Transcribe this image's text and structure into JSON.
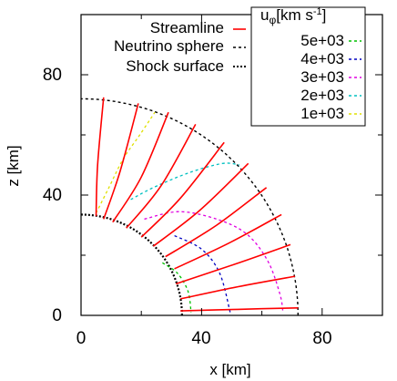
{
  "chart_data": {
    "type": "line",
    "xlabel": "x [km]",
    "ylabel": "z [km]",
    "xlim": [
      0,
      100
    ],
    "ylim": [
      0,
      100
    ],
    "xticks": [
      "0",
      "40",
      "80"
    ],
    "yticks": [
      "0",
      "40",
      "80"
    ],
    "grid": false,
    "legend_position": "inside top",
    "neutrino_sphere_radius_km": 72,
    "shock_surface_radius_km": 33.5,
    "streamlines": [
      [
        [
          72,
          2.5
        ],
        [
          52,
          2
        ],
        [
          33,
          1.5
        ]
      ],
      [
        [
          71,
          13
        ],
        [
          52,
          9.5
        ],
        [
          33,
          5.5
        ]
      ],
      [
        [
          69.5,
          23.5
        ],
        [
          51,
          17
        ],
        [
          31.5,
          10.5
        ]
      ],
      [
        [
          66.5,
          33.5
        ],
        [
          49,
          24
        ],
        [
          31,
          15.5
        ]
      ],
      [
        [
          61.5,
          42.5
        ],
        [
          45,
          30
        ],
        [
          28,
          19.5
        ]
      ],
      [
        [
          55.5,
          50.5
        ],
        [
          39.5,
          35
        ],
        [
          24,
          23
        ]
      ],
      [
        [
          47.5,
          57.5
        ],
        [
          33,
          39
        ],
        [
          20,
          26
        ]
      ],
      [
        [
          38,
          63.5
        ],
        [
          26.5,
          43
        ],
        [
          15,
          29
        ]
      ],
      [
        [
          29,
          67.5
        ],
        [
          20,
          46
        ],
        [
          10.5,
          31
        ]
      ],
      [
        [
          19,
          70.5
        ],
        [
          13,
          48
        ],
        [
          7.5,
          32
        ]
      ],
      [
        [
          7.5,
          72.5
        ],
        [
          5.5,
          50
        ],
        [
          5,
          33
        ]
      ]
    ],
    "uphi_contours": [
      {
        "label": "5e+03",
        "color": "#00c000",
        "points": [
          [
            27,
            17.5
          ],
          [
            32,
            14
          ],
          [
            35.5,
            8
          ],
          [
            36.5,
            1
          ]
        ]
      },
      {
        "label": "4e+03",
        "color": "#0000c0",
        "points": [
          [
            31,
            26.5
          ],
          [
            40,
            22
          ],
          [
            46,
            14
          ],
          [
            49.5,
            1
          ]
        ]
      },
      {
        "label": "3e+03",
        "color": "#e000e0",
        "points": [
          [
            21,
            32
          ],
          [
            32.5,
            34.5
          ],
          [
            45,
            32
          ],
          [
            55,
            27
          ],
          [
            62,
            18
          ],
          [
            66,
            7
          ],
          [
            67,
            1
          ]
        ]
      },
      {
        "label": "2e+03",
        "color": "#00c0c0",
        "points": [
          [
            16.5,
            38.5
          ],
          [
            24,
            42.5
          ],
          [
            36,
            47.5
          ],
          [
            47,
            50.5
          ],
          [
            52.5,
            50
          ]
        ]
      },
      {
        "label": "1e+03",
        "color": "#e0e000",
        "points": [
          [
            5,
            34
          ],
          [
            9,
            42
          ],
          [
            14,
            52
          ],
          [
            19.5,
            60
          ],
          [
            24.5,
            67.5
          ]
        ]
      }
    ]
  },
  "legend": {
    "streamline": {
      "label": "Streamline",
      "color": "#ff0000"
    },
    "neutrino": {
      "label": "Neutrino sphere"
    },
    "shock": {
      "label": "Shock surface"
    },
    "uphi_base": "u",
    "uphi_sub": "φ",
    "uphi_unit": "[km s",
    "uphi_exp": "-1",
    "uphi_close": "]",
    "contour_labels": [
      "5e+03",
      "4e+03",
      "3e+03",
      "2e+03",
      "1e+03"
    ]
  }
}
